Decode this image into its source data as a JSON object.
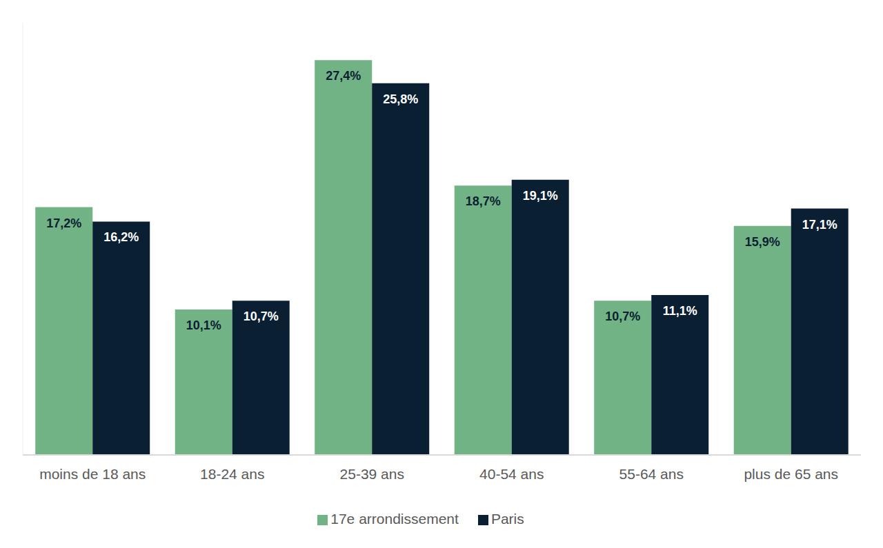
{
  "chart_data": {
    "type": "bar",
    "categories": [
      "moins de 18 ans",
      "18-24 ans",
      "25-39 ans",
      "40-54 ans",
      "55-64 ans",
      "plus de 65 ans"
    ],
    "series": [
      {
        "name": "17e arrondissement",
        "color": "#71B385",
        "values": [
          17.2,
          10.1,
          27.4,
          18.7,
          10.7,
          15.9
        ],
        "value_labels": [
          "17,2%",
          "10,1%",
          "27,4%",
          "18,7%",
          "10,7%",
          "15,9%"
        ]
      },
      {
        "name": "Paris",
        "color": "#0B1F33",
        "values": [
          16.2,
          10.7,
          25.8,
          19.1,
          11.1,
          17.1
        ],
        "value_labels": [
          "16,2%",
          "10,7%",
          "25,8%",
          "19,1%",
          "11,1%",
          "17,1%"
        ]
      }
    ],
    "ylim": [
      0,
      30
    ],
    "data_labels": true,
    "tick_labels": "x",
    "legend": "bottom",
    "grid": false
  }
}
